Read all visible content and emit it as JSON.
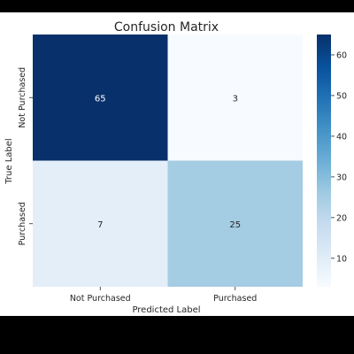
{
  "chart_data": {
    "type": "heatmap",
    "title": "Confusion Matrix",
    "xlabel": "Predicted Label",
    "ylabel": "True Label",
    "x_categories": [
      "Not Purchased",
      "Purchased"
    ],
    "y_categories": [
      "Not Purchased",
      "Purchased"
    ],
    "values": [
      [
        65,
        3
      ],
      [
        7,
        25
      ]
    ],
    "colormap": "Blues",
    "colorbar": {
      "range": [
        3,
        65
      ],
      "ticks": [
        "10",
        "20",
        "30",
        "40",
        "50",
        "60"
      ]
    },
    "cell_colors": [
      [
        "#08306b",
        "#f7fbff"
      ],
      [
        "#e3eef9",
        "#a4cce3"
      ]
    ],
    "text_colors": [
      [
        "#ffffff",
        "#262626"
      ],
      [
        "#262626",
        "#262626"
      ]
    ]
  }
}
